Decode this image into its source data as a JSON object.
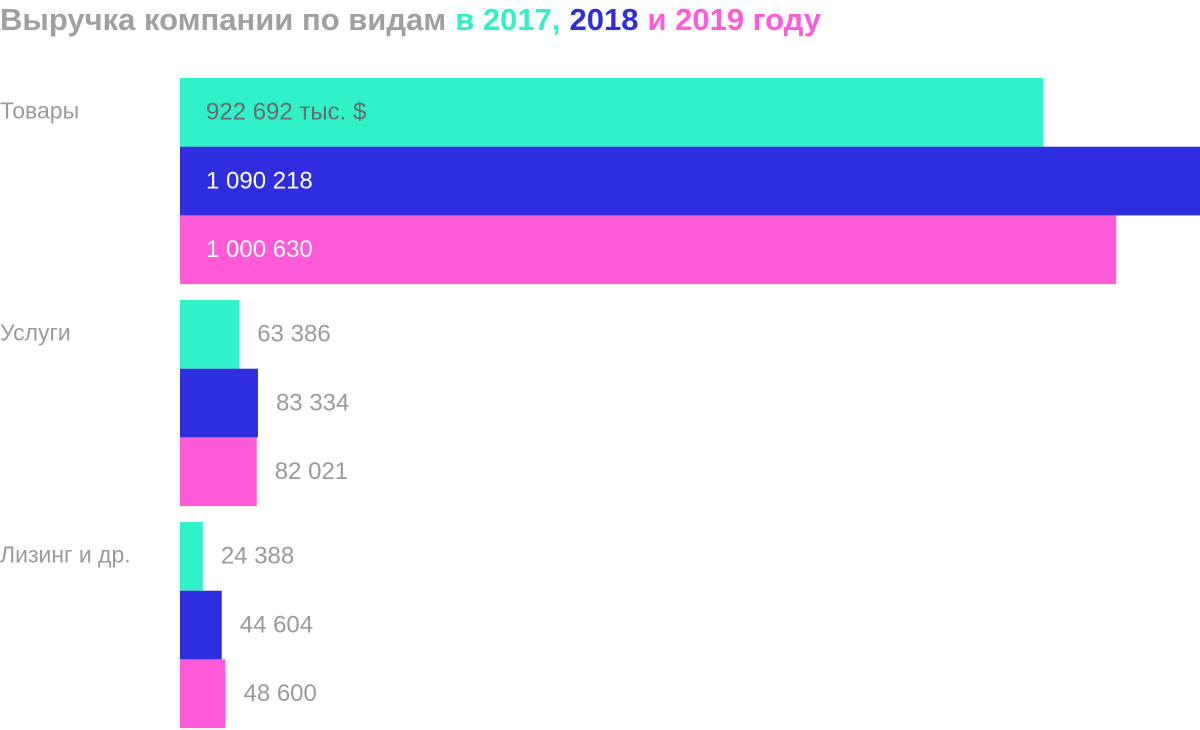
{
  "chart_data": {
    "type": "hbar",
    "title": "Выручка компании по видам",
    "categories": [
      "Товары",
      "Услуги",
      "Лизинг и др."
    ],
    "series": [
      {
        "name": "в 2017,",
        "color": "#30f2c8",
        "values": [
          922692,
          63386,
          24388
        ],
        "value_labels": [
          "922 692 тыс. $",
          "63 386",
          "24 388"
        ]
      },
      {
        "name": "2018",
        "color": "#2e2ee0",
        "values": [
          1090218,
          83334,
          44604
        ],
        "value_labels": [
          "1 090 218",
          "83 334",
          "44 604"
        ]
      },
      {
        "name": "и 2019 году",
        "color": "#ff5ad8",
        "values": [
          1000630,
          82021,
          48600
        ],
        "value_labels": [
          "1 000 630",
          "82 021",
          "48 600"
        ]
      }
    ]
  }
}
